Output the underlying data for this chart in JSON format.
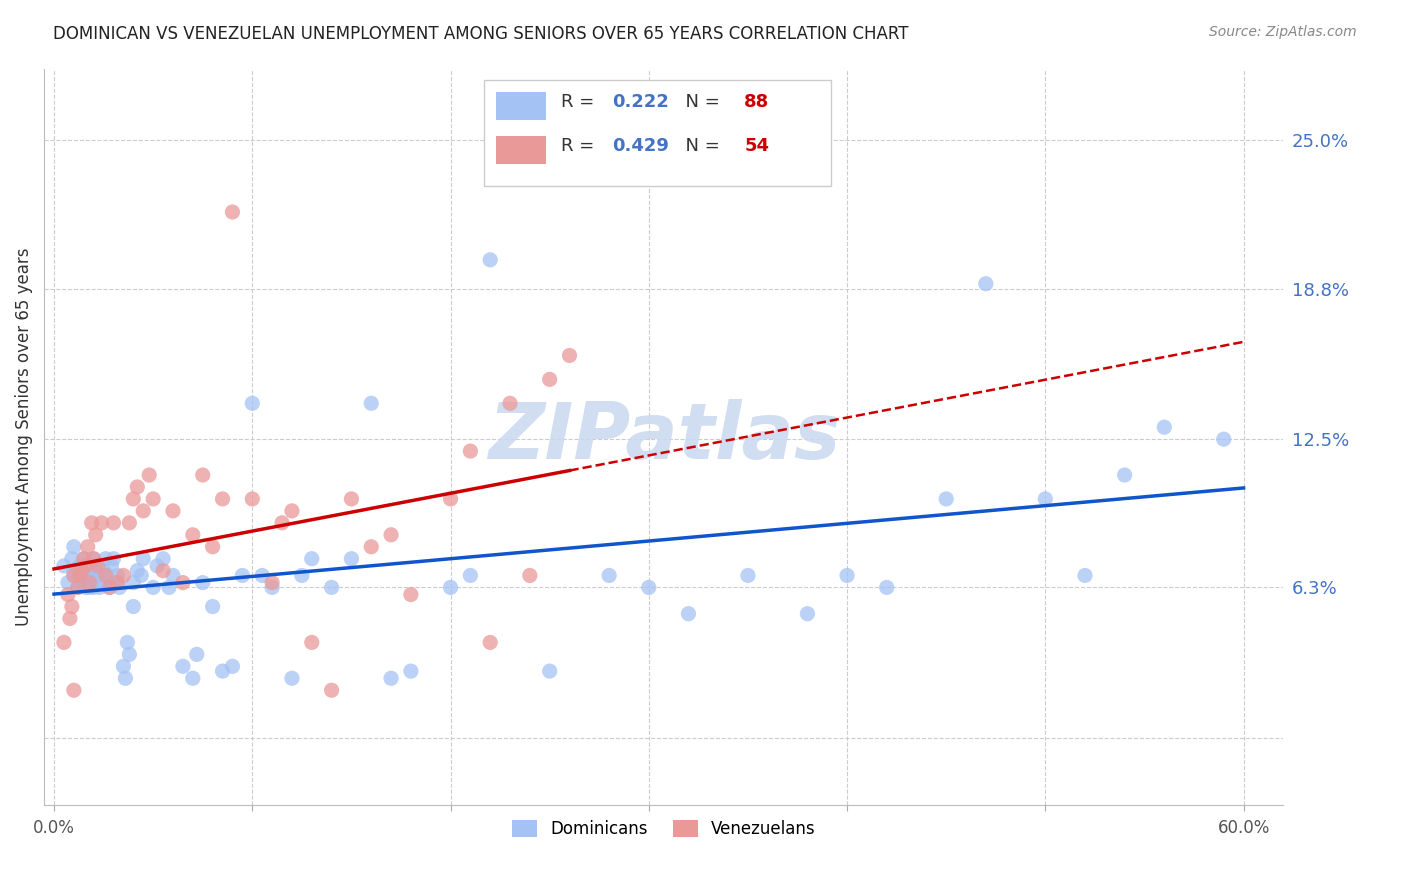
{
  "title": "DOMINICAN VS VENEZUELAN UNEMPLOYMENT AMONG SENIORS OVER 65 YEARS CORRELATION CHART",
  "source": "Source: ZipAtlas.com",
  "ylabel": "Unemployment Among Seniors over 65 years",
  "xlim": [
    0.0,
    0.6
  ],
  "ylim": [
    -0.028,
    0.28
  ],
  "yticks": [
    0.0,
    0.063,
    0.125,
    0.188,
    0.25
  ],
  "ytick_labels": [
    "",
    "6.3%",
    "12.5%",
    "18.8%",
    "25.0%"
  ],
  "xtick_labels": [
    "0.0%",
    "",
    "",
    "",
    "",
    "",
    "60.0%"
  ],
  "xticks": [
    0.0,
    0.1,
    0.2,
    0.3,
    0.4,
    0.5,
    0.6
  ],
  "dominican_R": "0.222",
  "dominican_N": "88",
  "venezuelan_R": "0.429",
  "venezuelan_N": "54",
  "dominican_color": "#a4c2f4",
  "venezuelan_color": "#ea9999",
  "dominican_line_color": "#1155cc",
  "venezuelan_line_color": "#cc0000",
  "legend_r_n_color": "#0000ff",
  "watermark_text": "ZIPatlas",
  "watermark_color": "#c9d9f0",
  "dominican_x": [
    0.005,
    0.007,
    0.009,
    0.01,
    0.01,
    0.01,
    0.012,
    0.013,
    0.013,
    0.014,
    0.014,
    0.015,
    0.015,
    0.016,
    0.016,
    0.017,
    0.017,
    0.018,
    0.018,
    0.019,
    0.019,
    0.02,
    0.02,
    0.021,
    0.021,
    0.022,
    0.023,
    0.024,
    0.025,
    0.026,
    0.027,
    0.028,
    0.029,
    0.03,
    0.03,
    0.032,
    0.033,
    0.035,
    0.036,
    0.037,
    0.038,
    0.04,
    0.04,
    0.042,
    0.044,
    0.045,
    0.05,
    0.052,
    0.055,
    0.058,
    0.06,
    0.065,
    0.07,
    0.072,
    0.075,
    0.08,
    0.085,
    0.09,
    0.095,
    0.1,
    0.105,
    0.11,
    0.12,
    0.125,
    0.13,
    0.14,
    0.15,
    0.16,
    0.17,
    0.18,
    0.2,
    0.21,
    0.22,
    0.25,
    0.28,
    0.3,
    0.32,
    0.35,
    0.38,
    0.4,
    0.42,
    0.45,
    0.47,
    0.5,
    0.52,
    0.54,
    0.56,
    0.59
  ],
  "dominican_y": [
    0.072,
    0.065,
    0.075,
    0.07,
    0.08,
    0.068,
    0.063,
    0.072,
    0.068,
    0.065,
    0.07,
    0.068,
    0.075,
    0.063,
    0.07,
    0.065,
    0.072,
    0.063,
    0.068,
    0.07,
    0.065,
    0.075,
    0.063,
    0.07,
    0.072,
    0.068,
    0.063,
    0.065,
    0.07,
    0.075,
    0.068,
    0.063,
    0.072,
    0.065,
    0.075,
    0.068,
    0.063,
    0.03,
    0.025,
    0.04,
    0.035,
    0.065,
    0.055,
    0.07,
    0.068,
    0.075,
    0.063,
    0.072,
    0.075,
    0.063,
    0.068,
    0.03,
    0.025,
    0.035,
    0.065,
    0.055,
    0.028,
    0.03,
    0.068,
    0.14,
    0.068,
    0.063,
    0.025,
    0.068,
    0.075,
    0.063,
    0.075,
    0.14,
    0.025,
    0.028,
    0.063,
    0.068,
    0.2,
    0.028,
    0.068,
    0.063,
    0.052,
    0.068,
    0.052,
    0.068,
    0.063,
    0.1,
    0.19,
    0.1,
    0.068,
    0.11,
    0.13,
    0.125
  ],
  "venezuelan_x": [
    0.005,
    0.007,
    0.008,
    0.009,
    0.01,
    0.01,
    0.012,
    0.013,
    0.014,
    0.015,
    0.016,
    0.017,
    0.018,
    0.019,
    0.02,
    0.021,
    0.022,
    0.024,
    0.026,
    0.028,
    0.03,
    0.032,
    0.035,
    0.038,
    0.04,
    0.042,
    0.045,
    0.048,
    0.05,
    0.055,
    0.06,
    0.065,
    0.07,
    0.075,
    0.08,
    0.085,
    0.09,
    0.1,
    0.11,
    0.115,
    0.12,
    0.13,
    0.14,
    0.15,
    0.16,
    0.17,
    0.18,
    0.2,
    0.21,
    0.22,
    0.23,
    0.24,
    0.25,
    0.26
  ],
  "venezuelan_y": [
    0.04,
    0.06,
    0.05,
    0.055,
    0.068,
    0.02,
    0.063,
    0.068,
    0.07,
    0.075,
    0.072,
    0.08,
    0.065,
    0.09,
    0.075,
    0.085,
    0.072,
    0.09,
    0.068,
    0.063,
    0.09,
    0.065,
    0.068,
    0.09,
    0.1,
    0.105,
    0.095,
    0.11,
    0.1,
    0.07,
    0.095,
    0.065,
    0.085,
    0.11,
    0.08,
    0.1,
    0.22,
    0.1,
    0.065,
    0.09,
    0.095,
    0.04,
    0.02,
    0.1,
    0.08,
    0.085,
    0.06,
    0.1,
    0.12,
    0.04,
    0.14,
    0.068,
    0.15,
    0.16
  ]
}
